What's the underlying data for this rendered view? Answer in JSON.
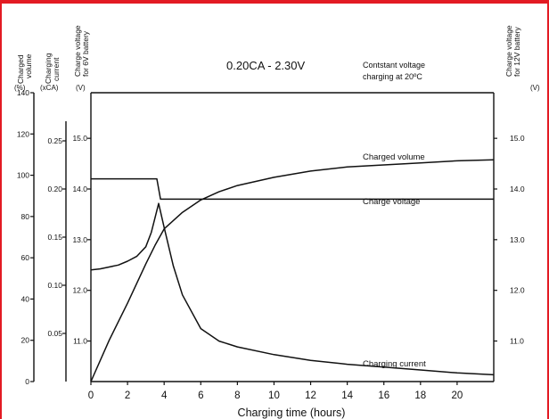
{
  "colors": {
    "frame": "#e31b23",
    "ink": "#111111",
    "background": "#ffffff"
  },
  "chart_data": {
    "type": "line",
    "title": "0.20CA - 2.30V",
    "note_lines": [
      "Contstant voltage",
      "charging at 20ºC"
    ],
    "xlabel": "Charging time (hours)",
    "xlim": [
      0,
      22
    ],
    "x_ticks": [
      0,
      2,
      4,
      6,
      8,
      10,
      12,
      14,
      16,
      18,
      20
    ],
    "axes": {
      "charged_volume": {
        "label_lines": [
          "Charged",
          "volume"
        ],
        "unit": "(%)",
        "range": [
          0,
          140
        ],
        "ticks": [
          0,
          20,
          40,
          60,
          80,
          100,
          120,
          140
        ],
        "tick_labels": [
          "0",
          "20",
          "40",
          "60",
          "80",
          "100",
          "120",
          "140"
        ]
      },
      "charging_current": {
        "label_lines": [
          "Charging",
          "current"
        ],
        "unit": "(xCA)",
        "range": [
          0,
          0.3
        ],
        "ticks": [
          0.05,
          0.1,
          0.15,
          0.2,
          0.25
        ],
        "tick_labels": [
          "0.05",
          "0.10",
          "0.15",
          "0.20",
          "0.25"
        ]
      },
      "voltage_6v": {
        "label_lines": [
          "Charge voltage",
          "for 6V battery"
        ],
        "unit": "(V)",
        "range": [
          10.2,
          15.9
        ],
        "ticks": [
          11.0,
          12.0,
          13.0,
          14.0,
          15.0
        ],
        "tick_labels": [
          "11.0",
          "12.0",
          "13.0",
          "14.0",
          "15.0"
        ]
      },
      "voltage_12v": {
        "label_lines": [
          "Charge voltage",
          "for 12V battery"
        ],
        "unit": "(V)",
        "range": [
          10.2,
          15.9
        ],
        "ticks": [
          11.0,
          12.0,
          13.0,
          14.0,
          15.0
        ],
        "tick_labels": [
          "11.0",
          "12.0",
          "13.0",
          "14.0",
          "15.0"
        ]
      }
    },
    "series": [
      {
        "name": "Charged volume",
        "axis": "charged_volume",
        "x": [
          0,
          1,
          2,
          3,
          3.5,
          4,
          5,
          6,
          7,
          8,
          10,
          12,
          14,
          16,
          18,
          20,
          22
        ],
        "y": [
          0,
          20,
          38,
          57,
          66,
          74,
          82,
          88,
          92,
          95,
          99,
          102,
          104,
          105,
          106,
          107,
          107.5
        ]
      },
      {
        "name": "Charge voltage",
        "axis": "voltage_12v",
        "x": [
          0,
          3.6,
          3.8,
          22
        ],
        "y": [
          14.2,
          14.2,
          13.8,
          13.8
        ]
      },
      {
        "name": "Charging current",
        "axis": "charging_current",
        "x": [
          0,
          0.5,
          1,
          1.5,
          2,
          2.5,
          3,
          3.3,
          3.5,
          3.7,
          4,
          4.5,
          5,
          6,
          7,
          8,
          10,
          12,
          14,
          16,
          18,
          20,
          22
        ],
        "y": [
          0.116,
          0.117,
          0.119,
          0.121,
          0.125,
          0.13,
          0.14,
          0.155,
          0.17,
          0.185,
          0.16,
          0.12,
          0.09,
          0.055,
          0.042,
          0.036,
          0.028,
          0.022,
          0.018,
          0.015,
          0.012,
          0.009,
          0.007
        ]
      }
    ],
    "grid": false
  }
}
